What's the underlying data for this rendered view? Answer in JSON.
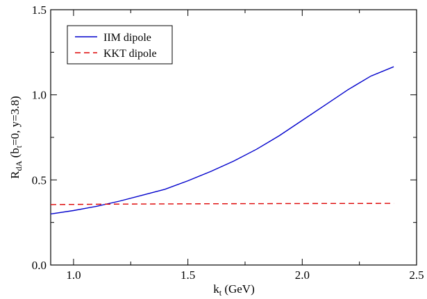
{
  "chart_data": {
    "type": "line",
    "xlim": [
      0.9,
      2.5
    ],
    "ylim": [
      0.0,
      1.5
    ],
    "x_ticks": [
      1.0,
      1.5,
      2.0,
      2.5
    ],
    "x_tick_labels": [
      "1.0",
      "1.5",
      "2.0",
      "2.5"
    ],
    "y_ticks": [
      0.0,
      0.5,
      1.0,
      1.5
    ],
    "y_tick_labels": [
      "0.0",
      "0.5",
      "1.0",
      "1.5"
    ],
    "xlabel": {
      "main": "k",
      "sub": "t",
      "tail": " (GeV)"
    },
    "ylabel": {
      "r": "R",
      "rsub": "dA",
      "mid": " (b",
      "bsub": "t",
      "tail": "=0, y=3.8)"
    },
    "grid": false,
    "legend_position": "top-left",
    "series": [
      {
        "name": "IIM dipole",
        "color": "#0000cc",
        "dash": "solid",
        "x": [
          0.9,
          1.0,
          1.1,
          1.2,
          1.3,
          1.4,
          1.5,
          1.6,
          1.7,
          1.8,
          1.9,
          2.0,
          2.1,
          2.2,
          2.3,
          2.4
        ],
        "y": [
          0.3,
          0.32,
          0.345,
          0.375,
          0.41,
          0.445,
          0.495,
          0.55,
          0.61,
          0.68,
          0.76,
          0.85,
          0.94,
          1.03,
          1.11,
          1.165
        ]
      },
      {
        "name": "KKT dipole",
        "color": "#dd0000",
        "dash": "dashed",
        "x": [
          0.9,
          1.2,
          1.6,
          2.0,
          2.4
        ],
        "y": [
          0.355,
          0.358,
          0.36,
          0.361,
          0.362
        ]
      }
    ]
  }
}
